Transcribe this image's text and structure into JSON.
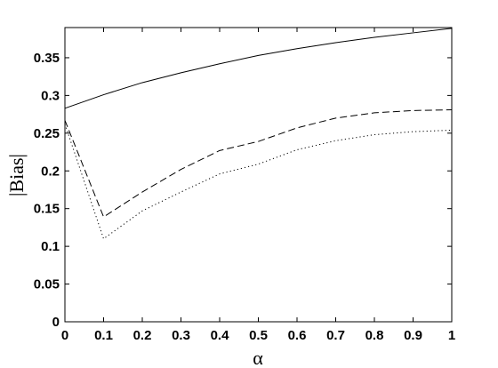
{
  "chart_data": {
    "type": "line",
    "xlabel": "α",
    "ylabel": "|Bias|",
    "xlim": [
      0,
      1
    ],
    "ylim": [
      0,
      0.39
    ],
    "xticks": [
      0,
      0.1,
      0.2,
      0.3,
      0.4,
      0.5,
      0.6,
      0.7,
      0.8,
      0.9,
      1
    ],
    "xtick_labels": [
      "0",
      "0.1",
      "0.2",
      "0.3",
      "0.4",
      "0.5",
      "0.6",
      "0.7",
      "0.8",
      "0.9",
      "1"
    ],
    "yticks": [
      0,
      0.05,
      0.1,
      0.15,
      0.2,
      0.25,
      0.3,
      0.35
    ],
    "ytick_labels": [
      "0",
      "0.05",
      "0.1",
      "0.15",
      "0.2",
      "0.25",
      "0.3",
      "0.35"
    ],
    "grid": false,
    "x": [
      0,
      0.1,
      0.2,
      0.3,
      0.4,
      0.5,
      0.6,
      0.7,
      0.8,
      0.9,
      1
    ],
    "series": [
      {
        "style": "solid",
        "color": "#000000",
        "values": [
          0.283,
          0.301,
          0.317,
          0.33,
          0.342,
          0.353,
          0.362,
          0.37,
          0.377,
          0.383,
          0.389
        ]
      },
      {
        "style": "dashed",
        "color": "#000000",
        "values": [
          0.267,
          0.139,
          0.172,
          0.202,
          0.227,
          0.239,
          0.257,
          0.27,
          0.277,
          0.28,
          0.281
        ]
      },
      {
        "style": "dotted",
        "color": "#000000",
        "values": [
          0.262,
          0.11,
          0.147,
          0.172,
          0.196,
          0.209,
          0.228,
          0.24,
          0.248,
          0.252,
          0.254
        ]
      }
    ]
  }
}
